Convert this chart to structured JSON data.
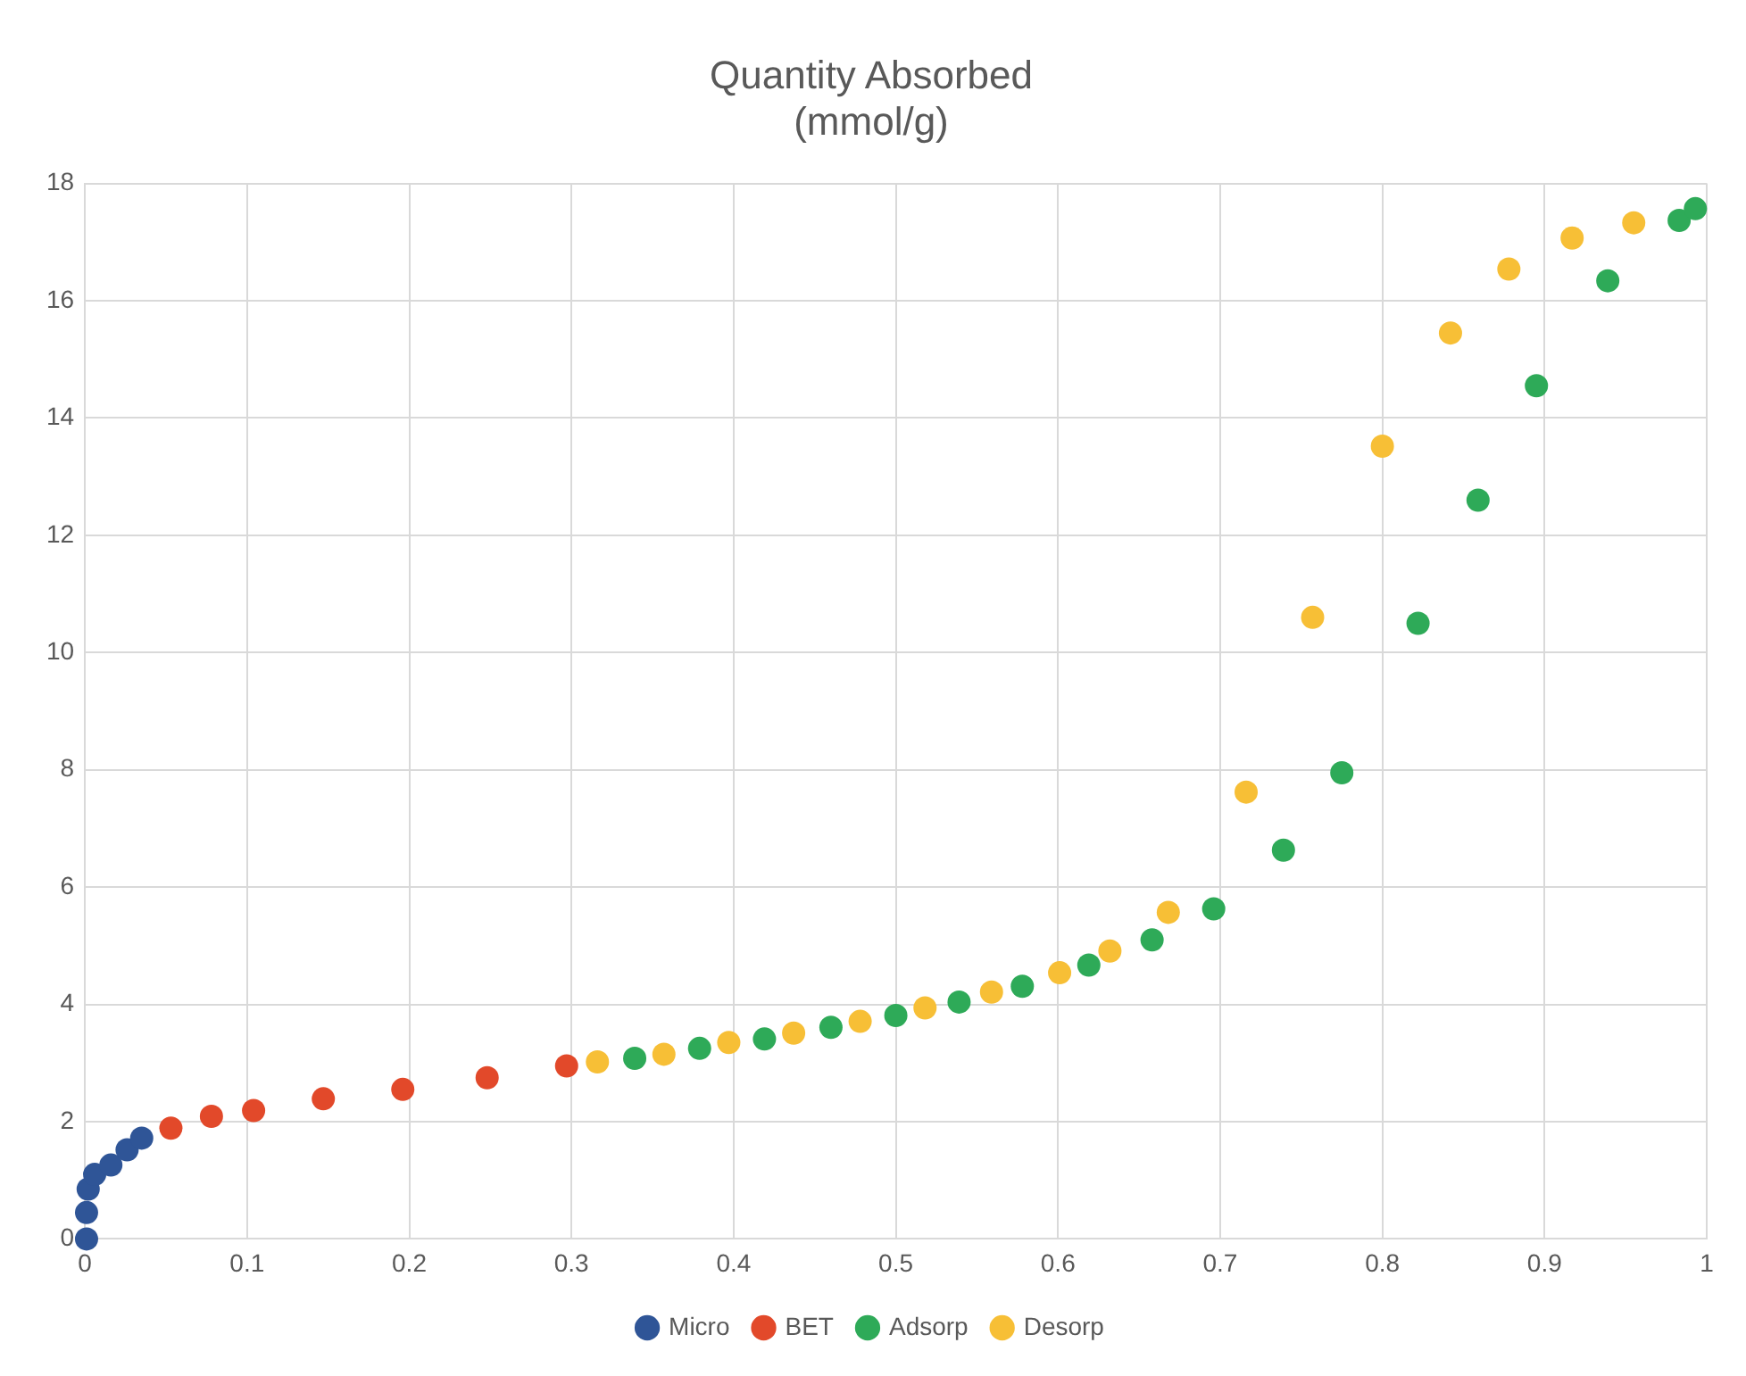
{
  "chart_data": {
    "type": "scatter",
    "title": "Quantity Absorbed\n(mmol/g)",
    "xlim": [
      0,
      1
    ],
    "xticks": [
      0,
      0.1,
      0.2,
      0.3,
      0.4,
      0.5,
      0.6,
      0.7,
      0.8,
      0.9,
      1
    ],
    "ylim": [
      0,
      18
    ],
    "yticks": [
      0,
      2,
      4,
      6,
      8,
      10,
      12,
      14,
      16,
      18
    ],
    "grid": true,
    "legend": "bottom",
    "marker": "circle",
    "series": [
      {
        "name": "Micro",
        "color": "#2f5597",
        "x": [
          0.001,
          0.001,
          0.002,
          0.006,
          0.016,
          0.026,
          0.035
        ],
        "values": [
          0,
          0.45,
          0.85,
          1.1,
          1.26,
          1.52,
          1.72
        ]
      },
      {
        "name": "BET",
        "color": "#e2492a",
        "x": [
          0.053,
          0.078,
          0.104,
          0.147,
          0.196,
          0.248,
          0.297
        ],
        "values": [
          1.89,
          2.09,
          2.19,
          2.39,
          2.55,
          2.75,
          2.95
        ]
      },
      {
        "name": "Adsorp",
        "color": "#2eaa58",
        "x": [
          0.339,
          0.379,
          0.419,
          0.46,
          0.5,
          0.539,
          0.578,
          0.619,
          0.658,
          0.696,
          0.739,
          0.775,
          0.822,
          0.859,
          0.895,
          0.939,
          0.983,
          0.993
        ],
        "values": [
          3.08,
          3.25,
          3.41,
          3.61,
          3.81,
          4.04,
          4.31,
          4.67,
          5.1,
          5.63,
          6.63,
          7.95,
          10.5,
          12.6,
          14.55,
          16.34,
          17.37,
          17.57
        ]
      },
      {
        "name": "Desorp",
        "color": "#f7bf36",
        "x": [
          0.316,
          0.357,
          0.397,
          0.437,
          0.478,
          0.518,
          0.559,
          0.601,
          0.632,
          0.668,
          0.716,
          0.757,
          0.8,
          0.842,
          0.878,
          0.917,
          0.955
        ],
        "values": [
          3.02,
          3.15,
          3.35,
          3.51,
          3.71,
          3.94,
          4.21,
          4.54,
          4.91,
          5.57,
          7.62,
          10.6,
          13.52,
          15.45,
          16.54,
          17.07,
          17.33
        ]
      }
    ]
  }
}
